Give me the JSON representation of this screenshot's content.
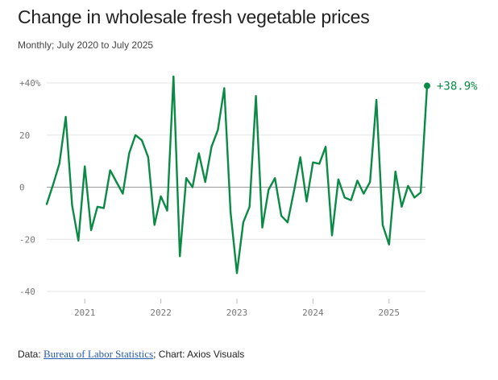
{
  "chart_data": {
    "type": "line",
    "title": "Change in wholesale fresh vegetable prices",
    "subtitle": "Monthly; July 2020 to July 2025",
    "ylim": [
      -40,
      40
    ],
    "yticks": [
      {
        "value": 40,
        "label": "+40%"
      },
      {
        "value": 20,
        "label": "20"
      },
      {
        "value": 0,
        "label": "0"
      },
      {
        "value": -20,
        "label": "-20"
      },
      {
        "value": -40,
        "label": "-40"
      }
    ],
    "xlim": [
      2020.5,
      2025.5
    ],
    "xticks": [
      {
        "value": 2021,
        "label": "2021"
      },
      {
        "value": 2022,
        "label": "2022"
      },
      {
        "value": 2023,
        "label": "2023"
      },
      {
        "value": 2024,
        "label": "2024"
      },
      {
        "value": 2025,
        "label": "2025"
      }
    ],
    "series": [
      {
        "name": "Change in wholesale fresh vegetable prices",
        "color": "#0a8a45",
        "x_start": 2020.5,
        "x_step_months": 1,
        "values": [
          -6.5,
          1,
          9,
          27,
          -7,
          -20.5,
          8,
          -16.5,
          -7.5,
          -8,
          6.5,
          2,
          -2.5,
          13,
          20,
          18,
          11.5,
          -14.5,
          -3.5,
          -9,
          42.5,
          -26.5,
          3.5,
          0,
          13,
          2,
          15.5,
          22,
          38,
          -9.5,
          -33,
          -13.5,
          -7.5,
          35,
          -15.5,
          -1,
          3.5,
          -11,
          -13.5,
          -1.5,
          11.5,
          -5.5,
          9.5,
          9,
          15.5,
          -18.5,
          3,
          -4,
          -5,
          2.5,
          -2.5,
          2,
          33.5,
          -14.5,
          -22,
          6,
          -7.5,
          0.5,
          -4,
          -2,
          38.9
        ]
      }
    ],
    "end_label": "+38.9%"
  },
  "source": {
    "prefix": "Data: ",
    "link_text": "Bureau of Labor Statistics",
    "suffix": "; Chart: Axios Visuals"
  }
}
